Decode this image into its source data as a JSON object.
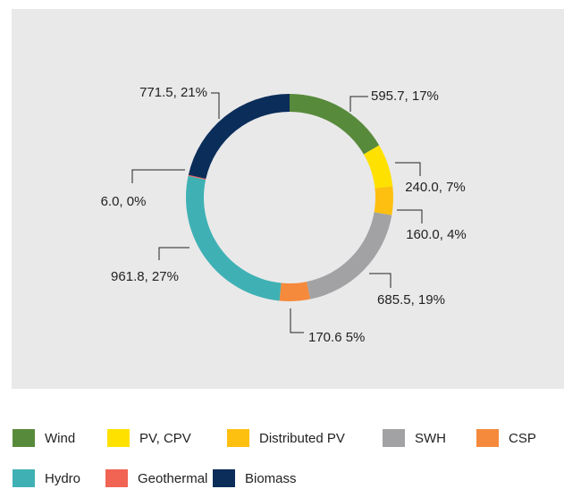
{
  "chart_data": {
    "type": "donut",
    "categories": [
      "Wind",
      "PV, CPV",
      "Distributed PV",
      "SWH",
      "CSP",
      "Hydro",
      "Geothermal",
      "Biomass"
    ],
    "values": [
      595.7,
      240.0,
      160.0,
      685.5,
      170.6,
      961.8,
      6.0,
      771.5
    ],
    "value_labels": [
      "595.7, 17%",
      "240.0, 7%",
      "160.0, 4%",
      "685.5, 19%",
      "170.6 5%",
      "961.8, 27%",
      "6.0, 0%",
      "771.5, 21%"
    ],
    "colors": [
      "#588a3b",
      "#ffe100",
      "#fdc010",
      "#a2a2a4",
      "#f58a3d",
      "#3fb1b4",
      "#f16353",
      "#0b2d5a"
    ],
    "legend": "bottom"
  }
}
